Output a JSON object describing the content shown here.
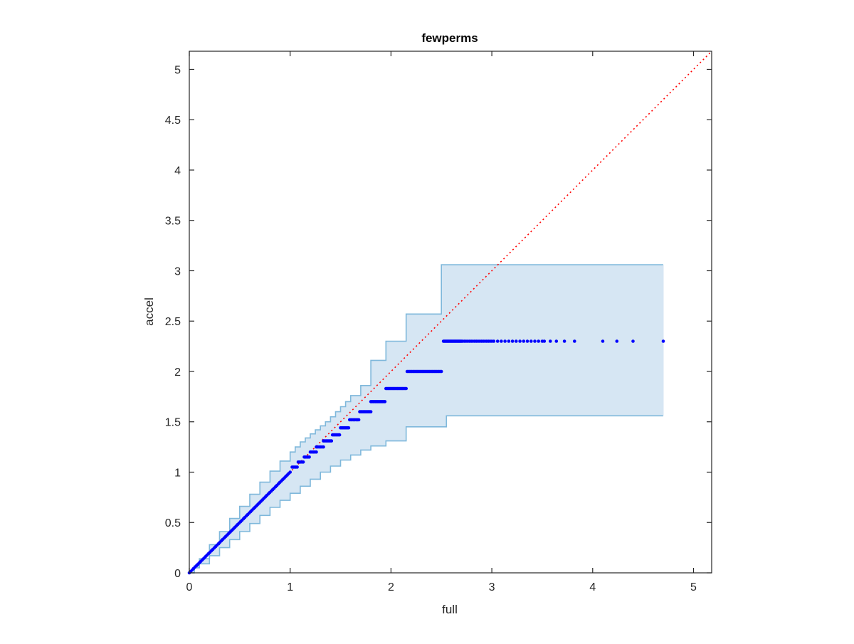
{
  "chart_data": {
    "type": "scatter",
    "title": "fewperms",
    "xlabel": "full",
    "ylabel": "accel",
    "xlim": [
      0,
      5.18
    ],
    "ylim": [
      0,
      5.18
    ],
    "xticks": [
      0,
      1,
      2,
      3,
      4,
      5
    ],
    "xtick_labels": [
      "0",
      "1",
      "2",
      "3",
      "4",
      "5"
    ],
    "yticks": [
      0,
      0.5,
      1,
      1.5,
      2,
      2.5,
      3,
      3.5,
      4,
      4.5,
      5
    ],
    "ytick_labels": [
      "0",
      "0.5",
      "1",
      "1.5",
      "2",
      "2.5",
      "3",
      "3.5",
      "4",
      "4.5",
      "5"
    ],
    "grid": false,
    "box": true,
    "colors": {
      "points": "#0000ff",
      "reference_line": "#ff0000",
      "band_fill": "#d6e6f3",
      "band_edge": "#7fb8db",
      "axis": "#262626"
    },
    "reference_line": {
      "x": [
        0,
        5.18
      ],
      "y": [
        0,
        5.18
      ],
      "style": "dotted"
    },
    "confidence_band": {
      "upper": [
        [
          0,
          0
        ],
        [
          0.05,
          0.07
        ],
        [
          0.1,
          0.14
        ],
        [
          0.2,
          0.28
        ],
        [
          0.3,
          0.41
        ],
        [
          0.4,
          0.54
        ],
        [
          0.5,
          0.66
        ],
        [
          0.6,
          0.78
        ],
        [
          0.7,
          0.9
        ],
        [
          0.8,
          1.01
        ],
        [
          0.9,
          1.11
        ],
        [
          1.0,
          1.2
        ],
        [
          1.05,
          1.25
        ],
        [
          1.1,
          1.3
        ],
        [
          1.15,
          1.34
        ],
        [
          1.2,
          1.38
        ],
        [
          1.25,
          1.42
        ],
        [
          1.3,
          1.46
        ],
        [
          1.35,
          1.5
        ],
        [
          1.4,
          1.55
        ],
        [
          1.45,
          1.6
        ],
        [
          1.5,
          1.65
        ],
        [
          1.55,
          1.7
        ],
        [
          1.6,
          1.76
        ],
        [
          1.7,
          1.86
        ],
        [
          1.8,
          2.11
        ],
        [
          1.95,
          2.3
        ],
        [
          2.15,
          2.57
        ],
        [
          2.5,
          3.06
        ],
        [
          4.7,
          3.06
        ]
      ],
      "lower": [
        [
          0,
          0
        ],
        [
          0.05,
          0.05
        ],
        [
          0.1,
          0.09
        ],
        [
          0.2,
          0.17
        ],
        [
          0.3,
          0.25
        ],
        [
          0.4,
          0.33
        ],
        [
          0.5,
          0.41
        ],
        [
          0.6,
          0.49
        ],
        [
          0.7,
          0.57
        ],
        [
          0.8,
          0.65
        ],
        [
          0.9,
          0.72
        ],
        [
          1.0,
          0.79
        ],
        [
          1.1,
          0.86
        ],
        [
          1.2,
          0.93
        ],
        [
          1.3,
          1.0
        ],
        [
          1.4,
          1.06
        ],
        [
          1.5,
          1.12
        ],
        [
          1.6,
          1.17
        ],
        [
          1.7,
          1.22
        ],
        [
          1.8,
          1.26
        ],
        [
          1.95,
          1.31
        ],
        [
          2.15,
          1.45
        ],
        [
          2.5,
          1.45
        ],
        [
          2.55,
          1.56
        ],
        [
          4.7,
          1.56
        ]
      ]
    },
    "series": [
      {
        "points": {
          "diagonal": {
            "x_start": 0,
            "x_end": 1.0,
            "count": 70
          },
          "segments": [
            {
              "y": 1.05,
              "x_start": 1.02,
              "x_end": 1.07,
              "count": 5
            },
            {
              "y": 1.1,
              "x_start": 1.08,
              "x_end": 1.13,
              "count": 5
            },
            {
              "y": 1.15,
              "x_start": 1.14,
              "x_end": 1.19,
              "count": 5
            },
            {
              "y": 1.2,
              "x_start": 1.2,
              "x_end": 1.26,
              "count": 5
            },
            {
              "y": 1.25,
              "x_start": 1.26,
              "x_end": 1.33,
              "count": 6
            },
            {
              "y": 1.31,
              "x_start": 1.33,
              "x_end": 1.41,
              "count": 7
            },
            {
              "y": 1.37,
              "x_start": 1.42,
              "x_end": 1.49,
              "count": 7
            },
            {
              "y": 1.44,
              "x_start": 1.5,
              "x_end": 1.58,
              "count": 8
            },
            {
              "y": 1.52,
              "x_start": 1.59,
              "x_end": 1.68,
              "count": 8
            },
            {
              "y": 1.6,
              "x_start": 1.69,
              "x_end": 1.8,
              "count": 10
            },
            {
              "y": 1.7,
              "x_start": 1.8,
              "x_end": 1.94,
              "count": 14
            },
            {
              "y": 1.83,
              "x_start": 1.95,
              "x_end": 2.15,
              "count": 19
            },
            {
              "y": 2.0,
              "x_start": 2.16,
              "x_end": 2.5,
              "count": 30
            },
            {
              "y": 2.3,
              "x_start": 2.52,
              "x_end": 2.7,
              "count": 26
            },
            {
              "y": 2.3,
              "x_start": 2.71,
              "x_end": 3.0,
              "count": 18
            },
            {
              "y": 2.3,
              "x_start": 3.02,
              "x_end": 3.5,
              "count": 14
            }
          ],
          "sparse_tail": {
            "y": 2.3,
            "x": [
              3.52,
              3.58,
              3.64,
              3.72,
              3.82,
              4.1,
              4.24,
              4.4,
              4.7
            ]
          }
        }
      }
    ]
  }
}
